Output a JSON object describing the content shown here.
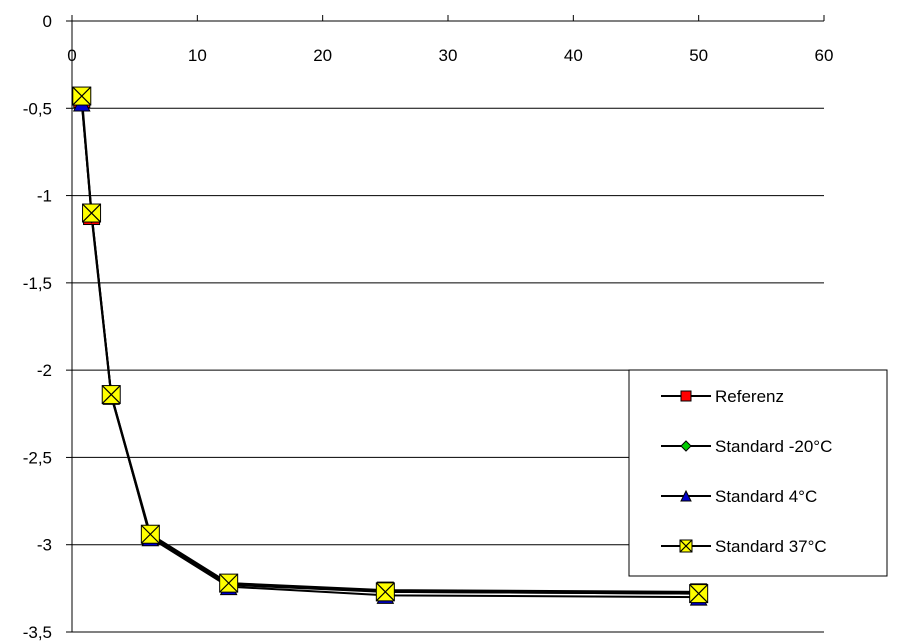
{
  "chart_data": {
    "type": "line",
    "title": "",
    "xlabel": "",
    "ylabel": "",
    "xlim": [
      0,
      60
    ],
    "ylim": [
      -3.5,
      0
    ],
    "x_ticks": [
      0,
      10,
      20,
      30,
      40,
      50,
      60
    ],
    "x_tick_labels": [
      "0",
      "10",
      "20",
      "30",
      "40",
      "50",
      "60"
    ],
    "y_ticks": [
      0,
      -0.5,
      -1,
      -1.5,
      -2,
      -2.5,
      -3,
      -3.5
    ],
    "y_tick_labels": [
      "0",
      "-0,5",
      "-1",
      "-1,5",
      "-2",
      "-2,5",
      "-3",
      "-3,5"
    ],
    "x_axis_position": "top",
    "grid": "horizontal",
    "legend_position": "bottom-right",
    "series": [
      {
        "name": "Referenz",
        "color": "#ff0000",
        "marker": "square",
        "x": [
          0.78,
          1.56,
          3.13,
          6.25,
          12.5,
          25,
          50
        ],
        "y": [
          -0.45,
          -1.12,
          -2.15,
          -2.95,
          -3.22,
          -3.26,
          -3.27
        ]
      },
      {
        "name": "Standard -20°C",
        "color": "#00cc00",
        "marker": "diamond",
        "x": [
          0.78,
          1.56,
          3.13,
          6.25,
          12.5,
          25,
          50
        ],
        "y": [
          -0.46,
          -1.11,
          -2.14,
          -2.95,
          -3.23,
          -3.27,
          -3.28
        ]
      },
      {
        "name": "Standard 4°C",
        "color": "#0000cc",
        "marker": "triangle",
        "x": [
          0.78,
          1.56,
          3.13,
          6.25,
          12.5,
          25,
          50
        ],
        "y": [
          -0.47,
          -1.1,
          -2.14,
          -2.96,
          -3.24,
          -3.29,
          -3.3
        ]
      },
      {
        "name": "Standard 37°C",
        "color": "#ffff00",
        "marker": "x",
        "x": [
          0.78,
          1.56,
          3.13,
          6.25,
          12.5,
          25,
          50
        ],
        "y": [
          -0.43,
          -1.1,
          -2.14,
          -2.94,
          -3.22,
          -3.27,
          -3.28
        ]
      }
    ]
  }
}
